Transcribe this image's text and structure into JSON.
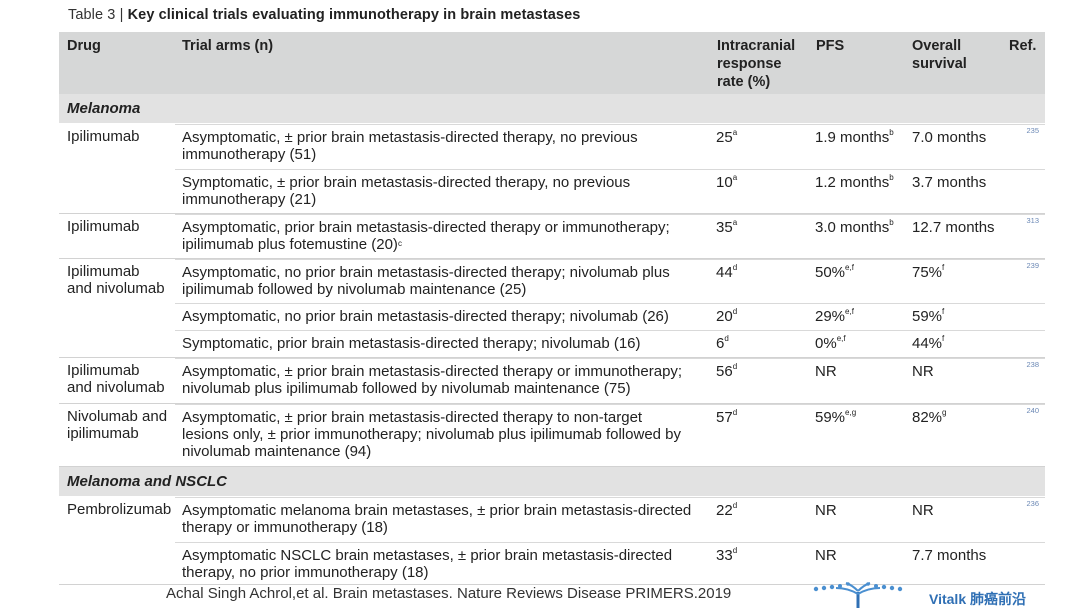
{
  "caption": {
    "label": "Table 3 |",
    "title": "Key clinical trials evaluating immunotherapy in brain metastases"
  },
  "headers": {
    "drug": "Drug",
    "arms": "Trial arms (n)",
    "ir": [
      "Intracranial",
      "response",
      "rate (%)"
    ],
    "pfs": "PFS",
    "os": [
      "Overall",
      "survival"
    ],
    "ref": "Ref."
  },
  "sections": [
    {
      "title": "Melanoma",
      "groups": [
        {
          "drug": [
            "Ipilimumab"
          ],
          "ref": "235",
          "height": 89,
          "rows": [
            {
              "arm": "Asymptomatic, ± prior brain metastasis-directed therapy, no previous immunotherapy (51)",
              "ir": "25",
              "ir_sup": "a",
              "pfs": "1.9 months",
              "pfs_sup": "b",
              "os": "7.0 months",
              "os_sup": "",
              "h": 45
            },
            {
              "arm": "Symptomatic, ± prior brain metastasis-directed therapy, no previous immunotherapy (21)",
              "ir": "10",
              "ir_sup": "a",
              "pfs": "1.2 months",
              "pfs_sup": "b",
              "os": "3.7 months",
              "os_sup": "",
              "h": 44
            }
          ]
        },
        {
          "drug": [
            "Ipilimumab"
          ],
          "ref": "313",
          "height": 44,
          "rows": [
            {
              "arm": "Asymptomatic, prior brain metastasis-directed therapy or immunotherapy; ipilimumab plus fotemustine (20)",
              "arm_sup": "c",
              "ir": "35",
              "ir_sup": "a",
              "pfs": "3.0 months",
              "pfs_sup": "b",
              "os": "12.7 months",
              "os_sup": "",
              "h": 44
            }
          ]
        },
        {
          "drug": [
            "Ipilimumab",
            "and nivolumab"
          ],
          "ref": "239",
          "height": 98,
          "rows": [
            {
              "arm": "Asymptomatic, no prior brain metastasis-directed therapy; nivolumab plus ipilimumab followed by nivolumab maintenance (25)",
              "ir": "44",
              "ir_sup": "d",
              "pfs": "50%",
              "pfs_sup": "e,f",
              "os": "75%",
              "os_sup": "f",
              "h": 44
            },
            {
              "arm": "Asymptomatic, no prior brain metastasis-directed therapy; nivolumab (26)",
              "ir": "20",
              "ir_sup": "d",
              "pfs": "29%",
              "pfs_sup": "e,f",
              "os": "59%",
              "os_sup": "f",
              "h": 27
            },
            {
              "arm": "Symptomatic, prior brain metastasis-directed therapy; nivolumab (16)",
              "ir": "6",
              "ir_sup": "d",
              "pfs": "0%",
              "pfs_sup": "e,f",
              "os": "44%",
              "os_sup": "f",
              "h": 27
            }
          ]
        },
        {
          "drug": [
            "Ipilimumab",
            "and nivolumab"
          ],
          "ref": "238",
          "height": 45,
          "rows": [
            {
              "arm": "Asymptomatic, ± prior brain metastasis-directed therapy or immunotherapy; nivolumab plus ipilimumab followed by nivolumab maintenance (75)",
              "ir": "56",
              "ir_sup": "d",
              "pfs": "NR",
              "pfs_sup": "",
              "os": "NR",
              "os_sup": "",
              "h": 45
            }
          ]
        },
        {
          "drug": [
            "Nivolumab and",
            "ipilimumab"
          ],
          "ref": "240",
          "height": 62,
          "rows": [
            {
              "arm": "Asymptomatic, ± prior brain metastasis-directed therapy to non-target lesions only, ± prior immunotherapy; nivolumab plus ipilimumab followed by nivolumab maintenance (94)",
              "ir": "57",
              "ir_sup": "d",
              "pfs": "59%",
              "pfs_sup": "e,g",
              "os": "82%",
              "os_sup": "g",
              "h": 62
            }
          ]
        }
      ]
    },
    {
      "title": "Melanoma and NSCLC",
      "groups": [
        {
          "drug": [
            "Pembrolizumab"
          ],
          "ref": "236",
          "height": 87,
          "rows": [
            {
              "arm": "Asymptomatic melanoma brain metastases, ± prior brain metastasis-directed therapy or immunotherapy (18)",
              "ir": "22",
              "ir_sup": "d",
              "pfs": "NR",
              "pfs_sup": "",
              "os": "NR",
              "os_sup": "",
              "h": 45
            },
            {
              "arm": "Asymptomatic NSCLC brain metastases, ± prior brain metastasis-directed therapy, no prior immunotherapy (18)",
              "ir": "33",
              "ir_sup": "d",
              "pfs": "NR",
              "pfs_sup": "",
              "os": "7.7 months",
              "os_sup": "",
              "h": 42
            }
          ]
        }
      ]
    }
  ],
  "footer": "Achal Singh Achrol,et al. Brain metastases. Nature Reviews Disease PRIMERS.2019",
  "brand": "Vitalk 肺癌前沿"
}
